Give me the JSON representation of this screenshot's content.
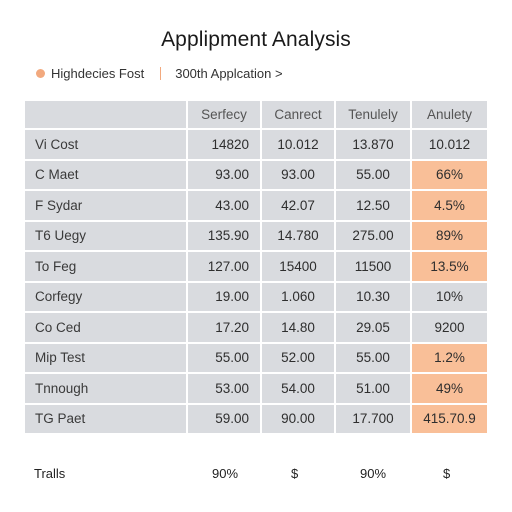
{
  "title": "Applipment Analysis",
  "legend": {
    "dot_color": "#f2a97e",
    "item_label": "Highdecies Fost",
    "link_label": "300th Applcation >"
  },
  "table": {
    "header": [
      "",
      "Serfecy",
      "Canrect",
      "Tenulely",
      "Anulety"
    ],
    "highlight_color": "#f9bf98",
    "cell_color": "#d9dbdf",
    "rows": [
      {
        "label": "Vi Cost",
        "values": [
          "14820",
          "10.012",
          "13.870",
          "10.012"
        ],
        "highlight": false
      },
      {
        "label": "C Maet",
        "values": [
          "93.00",
          "93.00",
          "55.00",
          "66%"
        ],
        "highlight": true
      },
      {
        "label": "F Sydar",
        "values": [
          "43.00",
          "42.07",
          "12.50",
          "4.5%"
        ],
        "highlight": true
      },
      {
        "label": "T6 Uegy",
        "values": [
          "135.90",
          "14.780",
          "275.00",
          "89%"
        ],
        "highlight": true
      },
      {
        "label": "To Feg",
        "values": [
          "127.00",
          "15400",
          "11500",
          "13.5%"
        ],
        "highlight": true
      },
      {
        "label": "Corfegy",
        "values": [
          "19.00",
          "1.060",
          "10.30",
          "10%"
        ],
        "highlight": false
      },
      {
        "label": "Co Ced",
        "values": [
          "17.20",
          "14.80",
          "29.05",
          "9200"
        ],
        "highlight": false
      },
      {
        "label": "Mip Test",
        "values": [
          "55.00",
          "52.00",
          "55.00",
          "1.2%"
        ],
        "highlight": true
      },
      {
        "label": "Tnnough",
        "values": [
          "53.00",
          "54.00",
          "51.00",
          "49%"
        ],
        "highlight": true
      },
      {
        "label": "TG Paet",
        "values": [
          "59.00",
          "90.00",
          "17.700",
          "415.70.9"
        ],
        "highlight": true
      }
    ]
  },
  "totals": {
    "label": "Tralls",
    "values": [
      "90%",
      "$",
      "90%",
      "$"
    ]
  }
}
